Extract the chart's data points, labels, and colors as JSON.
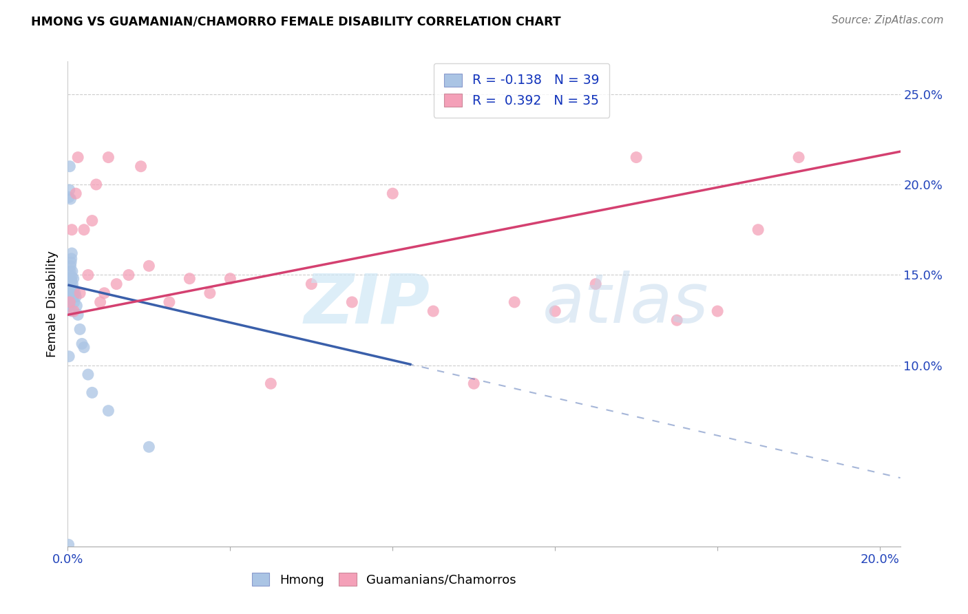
{
  "title": "HMONG VS GUAMANIAN/CHAMORRO FEMALE DISABILITY CORRELATION CHART",
  "source": "Source: ZipAtlas.com",
  "ylabel": "Female Disability",
  "xlim": [
    0.0,
    0.205
  ],
  "ylim": [
    0.0,
    0.268
  ],
  "xtick_vals": [
    0.0,
    0.04,
    0.08,
    0.12,
    0.16,
    0.2
  ],
  "xtick_labels": [
    "0.0%",
    "",
    "",
    "",
    "",
    "20.0%"
  ],
  "ytick_vals": [
    0.1,
    0.15,
    0.2,
    0.25
  ],
  "ytick_labels": [
    "10.0%",
    "15.0%",
    "20.0%",
    "25.0%"
  ],
  "hmong_R": -0.138,
  "hmong_N": 39,
  "guam_R": 0.392,
  "guam_N": 35,
  "hmong_dot_color": "#aac4e4",
  "hmong_line_color": "#3a5faa",
  "guam_dot_color": "#f4a0b8",
  "guam_line_color": "#d44070",
  "legend_label1": "Hmong",
  "legend_label2": "Guamanians/Chamorros",
  "hmong_x": [
    0.0002,
    0.0003,
    0.0003,
    0.0004,
    0.0004,
    0.0005,
    0.0005,
    0.0005,
    0.0006,
    0.0006,
    0.0006,
    0.0007,
    0.0007,
    0.0007,
    0.0008,
    0.0008,
    0.0009,
    0.0009,
    0.001,
    0.001,
    0.001,
    0.0011,
    0.0011,
    0.0012,
    0.0013,
    0.0014,
    0.0015,
    0.0016,
    0.0018,
    0.002,
    0.0022,
    0.0025,
    0.003,
    0.0035,
    0.004,
    0.005,
    0.006,
    0.01,
    0.02
  ],
  "hmong_y": [
    0.001,
    0.105,
    0.193,
    0.133,
    0.197,
    0.136,
    0.148,
    0.21,
    0.139,
    0.141,
    0.152,
    0.143,
    0.155,
    0.192,
    0.145,
    0.157,
    0.147,
    0.159,
    0.13,
    0.149,
    0.162,
    0.14,
    0.152,
    0.145,
    0.138,
    0.148,
    0.142,
    0.135,
    0.14,
    0.138,
    0.133,
    0.128,
    0.12,
    0.112,
    0.11,
    0.095,
    0.085,
    0.075,
    0.055
  ],
  "guam_x": [
    0.0005,
    0.001,
    0.0015,
    0.002,
    0.0025,
    0.003,
    0.004,
    0.005,
    0.006,
    0.007,
    0.008,
    0.009,
    0.01,
    0.012,
    0.015,
    0.018,
    0.02,
    0.025,
    0.03,
    0.035,
    0.04,
    0.05,
    0.06,
    0.07,
    0.08,
    0.09,
    0.1,
    0.11,
    0.12,
    0.13,
    0.14,
    0.15,
    0.16,
    0.17,
    0.18
  ],
  "guam_y": [
    0.135,
    0.175,
    0.13,
    0.195,
    0.215,
    0.14,
    0.175,
    0.15,
    0.18,
    0.2,
    0.135,
    0.14,
    0.215,
    0.145,
    0.15,
    0.21,
    0.155,
    0.135,
    0.148,
    0.14,
    0.148,
    0.09,
    0.145,
    0.135,
    0.195,
    0.13,
    0.09,
    0.135,
    0.13,
    0.145,
    0.215,
    0.125,
    0.13,
    0.175,
    0.215
  ]
}
